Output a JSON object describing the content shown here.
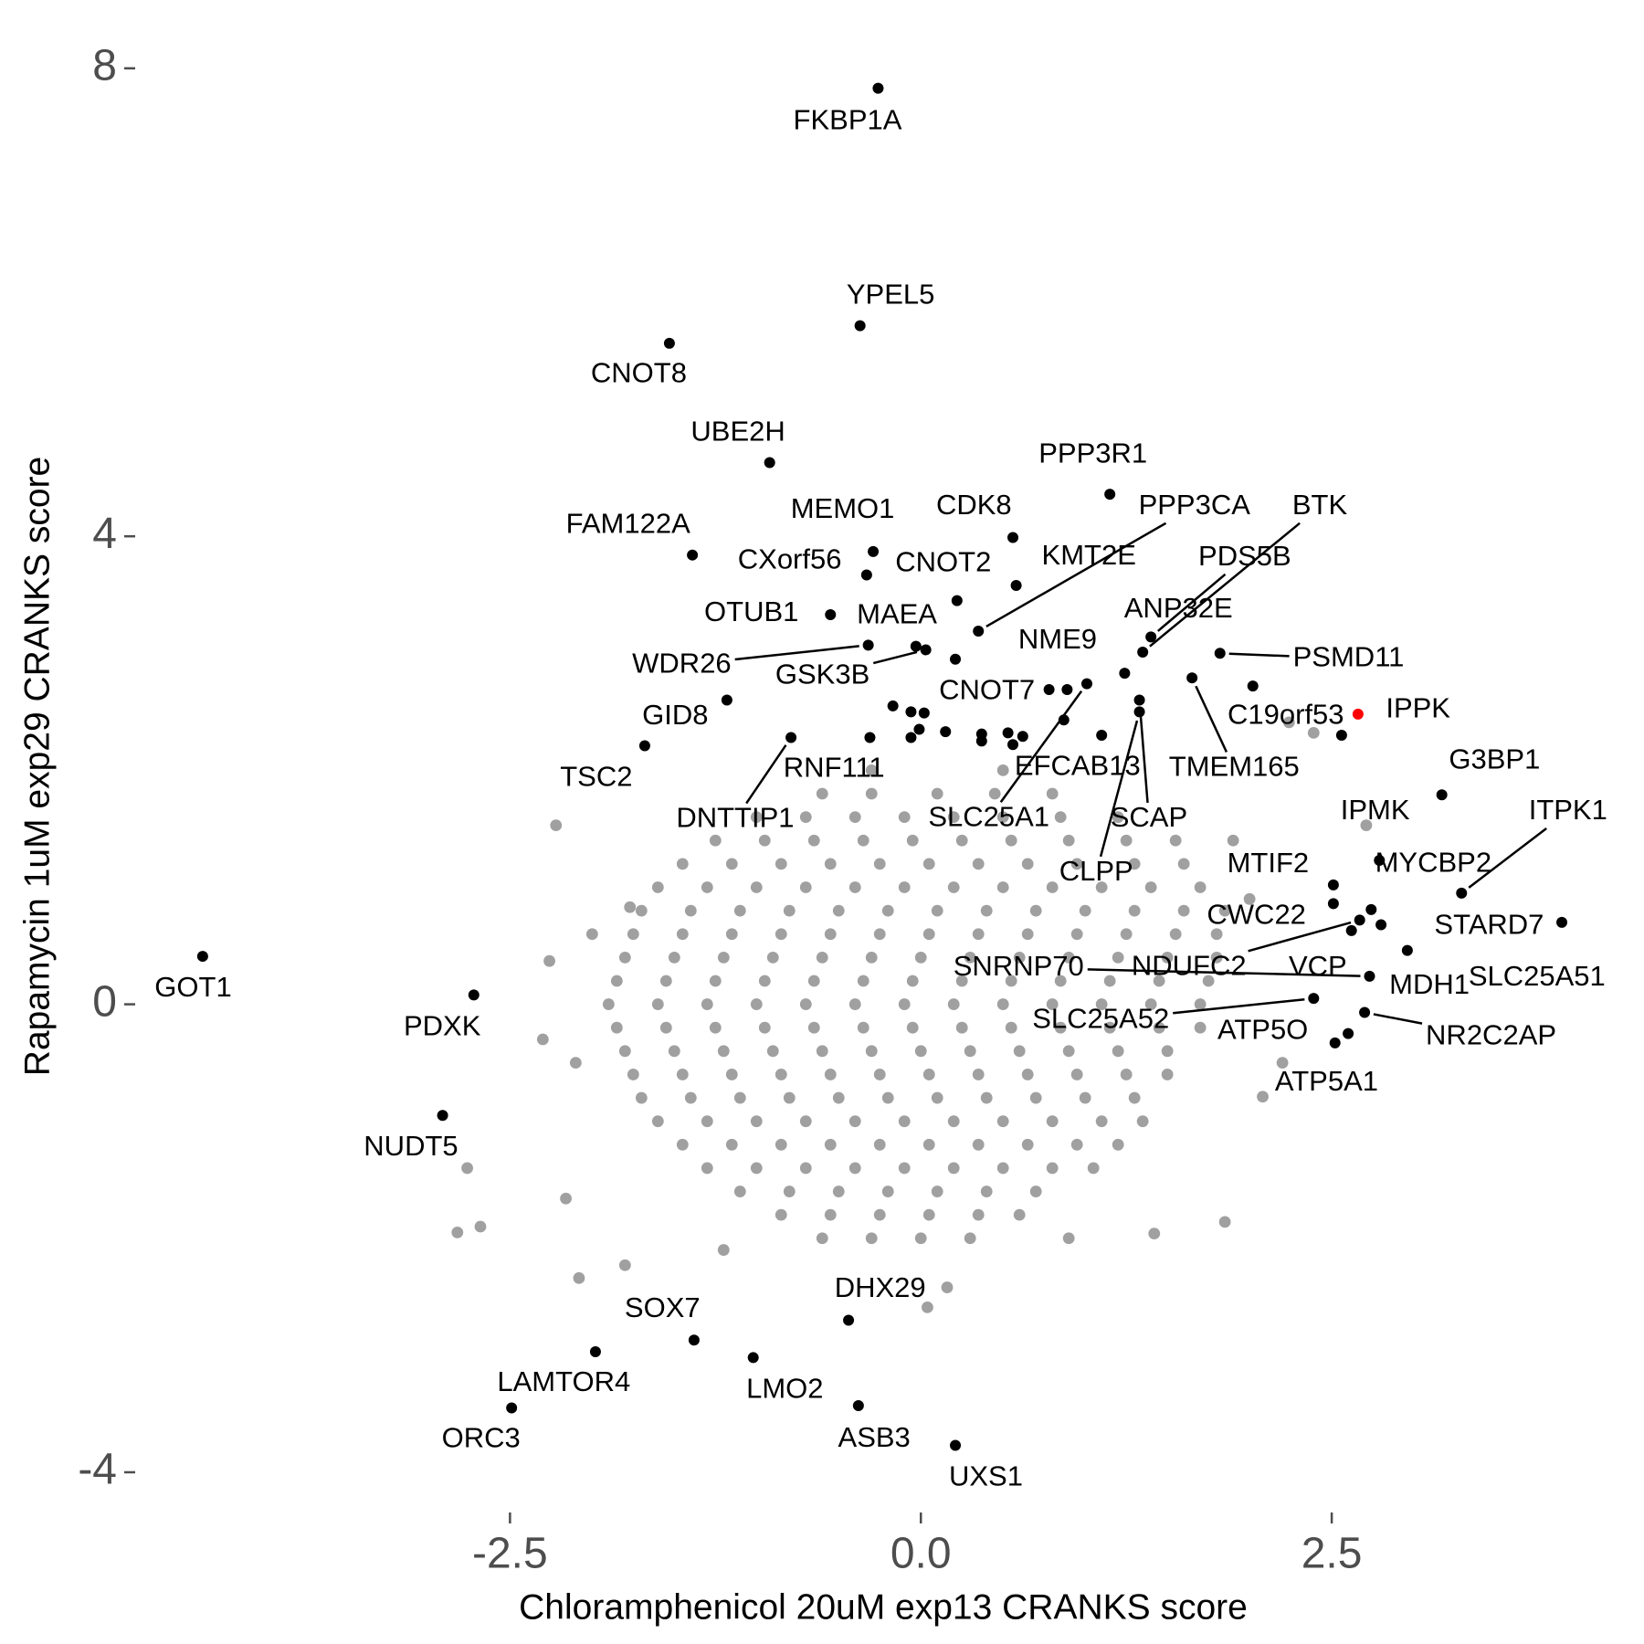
{
  "chart_data": {
    "type": "scatter",
    "x_label": "Chloramphenicol 20uM exp13 CRANKS score",
    "y_label": "Rapamycin 1uM exp29 CRANKS score",
    "xlim": [
      -4.8,
      4.3
    ],
    "ylim": [
      -4.3,
      8.1
    ],
    "xticks": [
      -2.5,
      {
        "value": 0,
        "label": "0.0"
      },
      2.5
    ],
    "yticks": [
      -4,
      0,
      4,
      8
    ],
    "grid": false,
    "series": [
      {
        "color": "#a0a0a0",
        "x": [
          -0.6,
          -0.3,
          0.1,
          0.45,
          0.8,
          -1.0,
          -0.7,
          -0.4,
          -0.1,
          0.2,
          0.5,
          0.85,
          1.2,
          -1.25,
          -0.95,
          -0.65,
          -0.35,
          -0.05,
          0.25,
          0.55,
          0.9,
          1.25,
          1.55,
          -1.45,
          -1.15,
          -0.85,
          -0.55,
          -0.25,
          0.05,
          0.35,
          0.65,
          0.95,
          1.3,
          1.6,
          -1.6,
          -1.3,
          -1.0,
          -0.7,
          -0.4,
          -0.1,
          0.2,
          0.5,
          0.8,
          1.1,
          1.4,
          1.7,
          -1.7,
          -1.4,
          -1.1,
          -0.8,
          -0.5,
          -0.2,
          0.1,
          0.4,
          0.7,
          1.0,
          1.3,
          1.6,
          1.85,
          -1.75,
          -1.45,
          -1.15,
          -0.85,
          -0.55,
          -0.25,
          0.05,
          0.35,
          0.65,
          0.95,
          1.25,
          1.55,
          1.8,
          -1.8,
          -1.5,
          -1.2,
          -0.9,
          -0.6,
          -0.3,
          0,
          0.3,
          0.6,
          0.9,
          1.2,
          1.5,
          1.8,
          -1.85,
          -1.55,
          -1.25,
          -0.95,
          -0.65,
          -0.35,
          -0.05,
          0.25,
          0.55,
          0.85,
          1.15,
          1.45,
          1.75,
          -1.9,
          -1.6,
          -1.3,
          -1.0,
          -0.7,
          -0.4,
          -0.1,
          0.2,
          0.5,
          0.8,
          1.1,
          1.4,
          1.7,
          -1.85,
          -1.55,
          -1.25,
          -0.95,
          -0.65,
          -0.35,
          -0.05,
          0.25,
          0.55,
          0.85,
          1.15,
          1.45,
          1.7,
          -1.8,
          -1.5,
          -1.2,
          -0.9,
          -0.6,
          -0.3,
          0,
          0.3,
          0.6,
          0.9,
          1.2,
          1.5,
          -1.75,
          -1.45,
          -1.15,
          -0.85,
          -0.55,
          -0.25,
          0.05,
          0.35,
          0.65,
          0.95,
          1.25,
          1.5,
          -1.7,
          -1.4,
          -1.1,
          -0.8,
          -0.5,
          -0.2,
          0.1,
          0.4,
          0.7,
          1.0,
          1.3,
          -1.6,
          -1.3,
          -1.0,
          -0.7,
          -0.4,
          -0.1,
          0.2,
          0.5,
          0.8,
          1.1,
          1.35,
          -1.45,
          -1.15,
          -0.85,
          -0.55,
          -0.25,
          0.05,
          0.35,
          0.65,
          0.95,
          1.2,
          -1.3,
          -1.0,
          -0.7,
          -0.4,
          -0.1,
          0.2,
          0.5,
          0.8,
          1.05,
          -1.1,
          -0.8,
          -0.5,
          -0.2,
          0.1,
          0.4,
          0.7,
          -0.85,
          -0.55,
          -0.25,
          0.05,
          0.35,
          0.6,
          -0.6,
          -0.3,
          0,
          0.3,
          -2.22,
          -2.76,
          -2.82,
          -2.68,
          -2.16,
          -2.08,
          -1.8,
          0.16,
          0.04,
          1.42,
          1.85,
          2.08,
          2.71,
          2.24,
          2.39,
          -2.26,
          -1.77,
          -2.1,
          -2.3,
          2.0,
          2.2,
          -1.2,
          0.9,
          1.9,
          -0.3,
          0.5,
          -2.0
        ],
        "values": [
          1.8,
          1.8,
          1.8,
          1.8,
          1.8,
          1.6,
          1.6,
          1.6,
          1.6,
          1.6,
          1.6,
          1.6,
          1.6,
          1.4,
          1.4,
          1.4,
          1.4,
          1.4,
          1.4,
          1.4,
          1.4,
          1.4,
          1.4,
          1.2,
          1.2,
          1.2,
          1.2,
          1.2,
          1.2,
          1.2,
          1.2,
          1.2,
          1.2,
          1.2,
          1.0,
          1.0,
          1.0,
          1.0,
          1.0,
          1.0,
          1.0,
          1.0,
          1.0,
          1.0,
          1.0,
          1.0,
          0.8,
          0.8,
          0.8,
          0.8,
          0.8,
          0.8,
          0.8,
          0.8,
          0.8,
          0.8,
          0.8,
          0.8,
          0.8,
          0.6,
          0.6,
          0.6,
          0.6,
          0.6,
          0.6,
          0.6,
          0.6,
          0.6,
          0.6,
          0.6,
          0.6,
          0.6,
          0.4,
          0.4,
          0.4,
          0.4,
          0.4,
          0.4,
          0.4,
          0.4,
          0.4,
          0.4,
          0.4,
          0.4,
          0.4,
          0.2,
          0.2,
          0.2,
          0.2,
          0.2,
          0.2,
          0.2,
          0.2,
          0.2,
          0.2,
          0.2,
          0.2,
          0.2,
          0,
          0,
          0,
          0,
          0,
          0,
          0,
          0,
          0,
          0,
          0,
          0,
          0,
          -0.2,
          -0.2,
          -0.2,
          -0.2,
          -0.2,
          -0.2,
          -0.2,
          -0.2,
          -0.2,
          -0.2,
          -0.2,
          -0.2,
          -0.2,
          -0.4,
          -0.4,
          -0.4,
          -0.4,
          -0.4,
          -0.4,
          -0.4,
          -0.4,
          -0.4,
          -0.4,
          -0.4,
          -0.4,
          -0.6,
          -0.6,
          -0.6,
          -0.6,
          -0.6,
          -0.6,
          -0.6,
          -0.6,
          -0.6,
          -0.6,
          -0.6,
          -0.6,
          -0.8,
          -0.8,
          -0.8,
          -0.8,
          -0.8,
          -0.8,
          -0.8,
          -0.8,
          -0.8,
          -0.8,
          -0.8,
          -1.0,
          -1.0,
          -1.0,
          -1.0,
          -1.0,
          -1.0,
          -1.0,
          -1.0,
          -1.0,
          -1.0,
          -1.0,
          -1.2,
          -1.2,
          -1.2,
          -1.2,
          -1.2,
          -1.2,
          -1.2,
          -1.2,
          -1.2,
          -1.2,
          -1.4,
          -1.4,
          -1.4,
          -1.4,
          -1.4,
          -1.4,
          -1.4,
          -1.4,
          -1.4,
          -1.6,
          -1.6,
          -1.6,
          -1.6,
          -1.6,
          -1.6,
          -1.6,
          -1.8,
          -1.8,
          -1.8,
          -1.8,
          -1.8,
          -1.8,
          -2.0,
          -2.0,
          -2.0,
          -2.0,
          1.53,
          -1.4,
          -1.95,
          -1.9,
          -1.66,
          -2.34,
          -2.23,
          -2.42,
          -2.59,
          -1.96,
          -1.86,
          -0.79,
          1.53,
          2.41,
          2.32,
          0.37,
          0.83,
          -0.5,
          -0.3,
          0.9,
          -0.5,
          -2.1,
          -2.0,
          1.4,
          2.0,
          2.0,
          0.6
        ]
      },
      {
        "color": "#000000",
        "x": [
          -0.26,
          -0.37,
          -1.53,
          -0.92,
          1.15,
          -1.39,
          -0.29,
          -0.33,
          0.56,
          0.22,
          0.58,
          0.35,
          1.35,
          1.4,
          1.24,
          -0.55,
          -0.03,
          -0.32,
          0.03,
          0.89,
          0.21,
          -1.18,
          -1.68,
          2.56,
          1.82,
          -0.31,
          -0.79,
          0.87,
          1.65,
          1.01,
          1.33,
          1.33,
          3.17,
          2.79,
          3.29,
          2.51,
          2.74,
          2.51,
          3.9,
          2.96,
          2.73,
          2.67,
          2.8,
          2.62,
          2.39,
          2.6,
          2.7,
          2.52,
          -4.37,
          -2.72,
          -2.91,
          -0.44,
          -1.38,
          -1.98,
          -1.02,
          -2.49,
          -0.38,
          0.21
        ],
        "values": [
          7.83,
          5.8,
          5.65,
          4.63,
          4.36,
          3.84,
          3.87,
          3.67,
          3.99,
          3.45,
          3.58,
          3.19,
          3.01,
          3.14,
          2.83,
          3.33,
          3.06,
          3.07,
          3.03,
          2.69,
          2.95,
          2.6,
          2.21,
          2.3,
          3.0,
          2.28,
          2.28,
          2.43,
          2.79,
          2.74,
          2.6,
          2.5,
          1.79,
          1.23,
          0.95,
          1.02,
          0.81,
          0.86,
          0.7,
          0.46,
          0.24,
          0.72,
          0.68,
          0.63,
          0.05,
          -0.25,
          -0.07,
          -0.33,
          0.41,
          0.08,
          -0.95,
          -2.7,
          -2.87,
          -2.97,
          -3.02,
          -3.45,
          -3.43,
          -3.77
        ],
        "labels": [
          "FKBP1A",
          "YPEL5",
          "CNOT8",
          "UBE2H",
          "PPP3R1",
          "FAM122A",
          "MEMO1",
          "CXorf56",
          "CDK8",
          "CNOT2",
          "KMT2E",
          "PPP3CA",
          "BTK",
          "PDS5B",
          "ANP32E",
          "OTUB1",
          "MAEA",
          "WDR26",
          "GSK3B",
          "NME9",
          "CNOT7",
          "GID8",
          "TSC2",
          "C19orf53",
          "PSMD11",
          "RNF111",
          "DNTTIP1",
          "EFCAB13",
          "TMEM165",
          "SLC25A1",
          "SCAP",
          "CLPP",
          "G3BP1",
          "IPMK",
          "ITPK1",
          "MTIF2",
          "MYCBP2",
          "CWC22",
          "STARD7",
          "SLC25A51",
          "SNRNP70",
          "NDUFC2",
          "VCP",
          "MDH1",
          "SLC25A52",
          "ATP5O",
          "NR2C2AP",
          "ATP5A1",
          "GOT1",
          "PDXK",
          "NUDT5",
          "DHX29",
          "SOX7",
          "LAMTOR4",
          "LMO2",
          "ORC3",
          "ASB3",
          "UXS1"
        ]
      },
      {
        "color": "#000000",
        "x": [
          -0.17,
          -0.06,
          0.02,
          -0.01,
          -0.06,
          0.15,
          0.37,
          0.37,
          0.53,
          0.62,
          0.56,
          0.78,
          1.1,
          2.02
        ],
        "values": [
          2.55,
          2.5,
          2.49,
          2.35,
          2.28,
          2.33,
          2.31,
          2.25,
          2.32,
          2.29,
          2.22,
          2.69,
          2.3,
          2.72
        ]
      },
      {
        "color": "#ff0000",
        "x": [
          2.66
        ],
        "values": [
          2.48
        ],
        "labels": [
          "IPPK"
        ]
      }
    ]
  }
}
